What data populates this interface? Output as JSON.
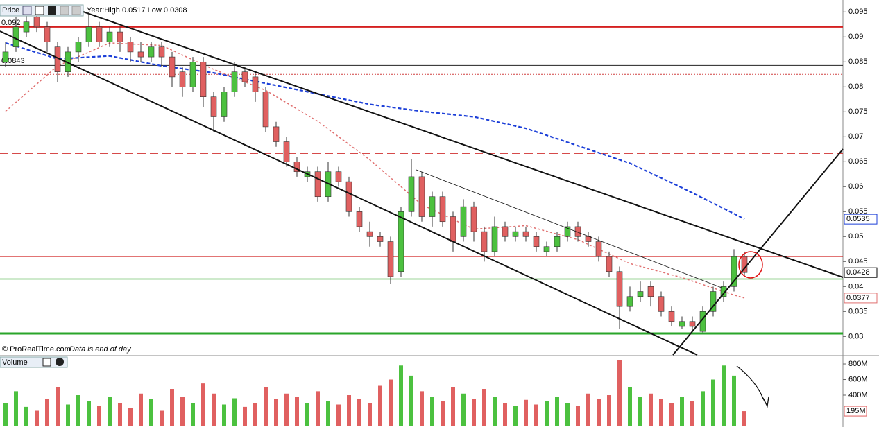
{
  "chart_data": {
    "type": "candlestick",
    "title": "Price",
    "subtitle": "Year:High 0.0517 Low 0.0308",
    "source": "© ProRealTime.com",
    "note": "Data is end of day",
    "open": [
      0.085,
      0.088,
      0.091,
      0.094,
      0.092,
      0.088,
      0.083,
      0.087,
      0.089,
      0.092,
      0.089,
      0.091,
      0.089,
      0.087,
      0.086,
      0.088,
      0.086,
      0.083,
      0.08,
      0.085,
      0.078,
      0.074,
      0.079,
      0.083,
      0.082,
      0.079,
      0.072,
      0.069,
      0.065,
      0.062,
      0.063,
      0.058,
      0.063,
      0.061,
      0.055,
      0.051,
      0.05,
      0.049,
      0.043,
      0.055,
      0.062,
      0.054,
      0.058,
      0.054,
      0.05,
      0.056,
      0.051,
      0.047,
      0.052,
      0.05,
      0.051,
      0.05,
      0.047,
      0.048,
      0.05,
      0.052,
      0.05,
      0.049,
      0.046,
      0.043,
      0.036,
      0.038,
      0.04,
      0.038,
      0.035,
      0.032,
      0.033,
      0.031,
      0.035,
      0.038,
      0.04,
      0.046
    ],
    "high": [
      0.089,
      0.094,
      0.096,
      0.095,
      0.093,
      0.089,
      0.088,
      0.09,
      0.095,
      0.093,
      0.092,
      0.092,
      0.09,
      0.089,
      0.089,
      0.089,
      0.087,
      0.084,
      0.086,
      0.086,
      0.079,
      0.08,
      0.085,
      0.084,
      0.083,
      0.08,
      0.073,
      0.07,
      0.066,
      0.064,
      0.064,
      0.065,
      0.064,
      0.062,
      0.056,
      0.053,
      0.051,
      0.05,
      0.056,
      0.0655,
      0.063,
      0.059,
      0.059,
      0.055,
      0.0575,
      0.057,
      0.052,
      0.054,
      0.053,
      0.052,
      0.052,
      0.051,
      0.049,
      0.051,
      0.053,
      0.053,
      0.051,
      0.05,
      0.047,
      0.044,
      0.04,
      0.041,
      0.041,
      0.039,
      0.036,
      0.034,
      0.034,
      0.036,
      0.04,
      0.041,
      0.0475,
      0.047
    ],
    "low": [
      0.084,
      0.087,
      0.09,
      0.091,
      0.087,
      0.081,
      0.082,
      0.085,
      0.088,
      0.088,
      0.088,
      0.087,
      0.085,
      0.085,
      0.085,
      0.084,
      0.08,
      0.078,
      0.079,
      0.076,
      0.071,
      0.073,
      0.078,
      0.08,
      0.077,
      0.071,
      0.068,
      0.064,
      0.062,
      0.061,
      0.057,
      0.057,
      0.06,
      0.054,
      0.051,
      0.048,
      0.048,
      0.0405,
      0.042,
      0.054,
      0.053,
      0.052,
      0.052,
      0.047,
      0.049,
      0.049,
      0.045,
      0.046,
      0.049,
      0.049,
      0.049,
      0.047,
      0.046,
      0.047,
      0.049,
      0.049,
      0.048,
      0.045,
      0.042,
      0.0315,
      0.035,
      0.037,
      0.036,
      0.034,
      0.032,
      0.0315,
      0.031,
      0.0308,
      0.034,
      0.037,
      0.039,
      0.042
    ],
    "close": [
      0.087,
      0.092,
      0.093,
      0.092,
      0.089,
      0.083,
      0.087,
      0.089,
      0.092,
      0.089,
      0.091,
      0.089,
      0.087,
      0.086,
      0.088,
      0.086,
      0.082,
      0.08,
      0.085,
      0.078,
      0.074,
      0.079,
      0.083,
      0.081,
      0.079,
      0.072,
      0.069,
      0.065,
      0.063,
      0.063,
      0.058,
      0.063,
      0.061,
      0.055,
      0.052,
      0.05,
      0.049,
      0.042,
      0.055,
      0.062,
      0.054,
      0.058,
      0.053,
      0.049,
      0.056,
      0.051,
      0.047,
      0.052,
      0.05,
      0.051,
      0.05,
      0.048,
      0.048,
      0.05,
      0.052,
      0.05,
      0.049,
      0.046,
      0.043,
      0.036,
      0.038,
      0.039,
      0.038,
      0.035,
      0.033,
      0.033,
      0.032,
      0.035,
      0.039,
      0.04,
      0.046,
      0.0428
    ],
    "up_color": "#4cc13f",
    "down_color": "#e06060",
    "ylim": [
      0.0263,
      0.0974
    ],
    "yticks": [
      0.095,
      0.09,
      0.085,
      0.08,
      0.075,
      0.07,
      0.065,
      0.06,
      0.055,
      0.05,
      0.045,
      0.04,
      0.035,
      0.03
    ],
    "moving_averages": [
      {
        "color": "#1c3fd8",
        "x": [
          0,
          5,
          10,
          15,
          20,
          25,
          30,
          35,
          40,
          45,
          50,
          55,
          60,
          65,
          70,
          71
        ],
        "values": [
          0.0888,
          0.0856,
          0.0862,
          0.0842,
          0.0828,
          0.0807,
          0.0786,
          0.0765,
          0.0751,
          0.074,
          0.0717,
          0.0682,
          0.0647,
          0.0598,
          0.0546,
          0.0535
        ]
      },
      {
        "color": "#e07070",
        "x": [
          0,
          5,
          10,
          15,
          20,
          25,
          30,
          35,
          40,
          45,
          50,
          55,
          60,
          65,
          70,
          71
        ],
        "values": [
          0.0751,
          0.0842,
          0.0888,
          0.0883,
          0.0835,
          0.0793,
          0.0731,
          0.0654,
          0.0564,
          0.0515,
          0.0522,
          0.0494,
          0.0446,
          0.0418,
          0.0383,
          0.0377
        ]
      }
    ],
    "levels": [
      {
        "value": 0.092,
        "color": "#d42020",
        "width": 2,
        "dash": "none"
      },
      {
        "value": 0.0843,
        "color": "#222222",
        "width": 1,
        "dash": "none"
      },
      {
        "value": 0.0825,
        "color": "#d04040",
        "width": 1,
        "dash": "2,2"
      },
      {
        "value": 0.0667,
        "color": "#d03030",
        "width": 1.5,
        "dash": "12,6"
      },
      {
        "value": 0.046,
        "color": "#d02020",
        "width": 1,
        "dash": "none"
      },
      {
        "value": 0.0415,
        "color": "#3aaa35",
        "width": 1.5,
        "dash": "none"
      },
      {
        "value": 0.0306,
        "color": "#2aa52a",
        "width": 3,
        "dash": "none"
      }
    ],
    "left_labels": [
      0.092,
      0.0843
    ],
    "last_labels": [
      {
        "value": 0.0535,
        "color": "#1c3fd8"
      },
      {
        "value": 0.0428,
        "color": "#000000"
      },
      {
        "value": 0.0377,
        "color": "#e07070"
      }
    ],
    "volume": {
      "title": "Volume",
      "values": [
        300,
        450,
        250,
        200,
        350,
        500,
        280,
        400,
        320,
        260,
        380,
        300,
        240,
        420,
        350,
        200,
        480,
        380,
        300,
        550,
        420,
        280,
        360,
        250,
        300,
        500,
        350,
        420,
        380,
        300,
        450,
        320,
        280,
        400,
        350,
        300,
        520,
        600,
        780,
        650,
        450,
        380,
        320,
        500,
        420,
        350,
        480,
        380,
        300,
        260,
        340,
        280,
        320,
        380,
        300,
        260,
        420,
        350,
        400,
        850,
        500,
        380,
        420,
        350,
        300,
        380,
        320,
        450,
        600,
        780,
        650,
        195
      ],
      "ylim": [
        0,
        898
      ],
      "yticks": [
        {
          "value": 800,
          "label": "800M"
        },
        {
          "value": 600,
          "label": "600M"
        },
        {
          "value": 400,
          "label": "400M"
        }
      ],
      "last": {
        "value": 195,
        "label": "195M"
      }
    }
  }
}
